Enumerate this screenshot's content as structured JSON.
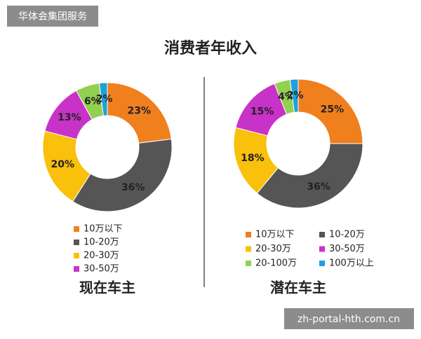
{
  "watermark": "华体会集团服务",
  "title": "消费者年收入",
  "footer": "zh-portal-hth.com.cn",
  "chart_data": [
    {
      "type": "donut",
      "title": "现在车主",
      "categories": [
        "10万以下",
        "10-20万",
        "20-30万",
        "30-50万",
        null,
        null
      ],
      "values": [
        23,
        36,
        20,
        13,
        6,
        2
      ],
      "value_labels": [
        "23%",
        "36%",
        "20%",
        "13%",
        "6%",
        "2%"
      ],
      "colors": [
        "#f07f1e",
        "#555555",
        "#f9c00c",
        "#c832c8",
        "#92d050",
        "#1ea0dc"
      ]
    },
    {
      "type": "donut",
      "title": "潜在车主",
      "categories": [
        "10万以下",
        "10-20万",
        "20-30万",
        "30-50万",
        "20-100万",
        "100万以上"
      ],
      "values": [
        25,
        36,
        18,
        15,
        4,
        2
      ],
      "value_labels": [
        "25%",
        "36%",
        "18%",
        "15%",
        "4%",
        "2%"
      ],
      "colors": [
        "#f07f1e",
        "#555555",
        "#f9c00c",
        "#c832c8",
        "#92d050",
        "#1ea0dc"
      ]
    }
  ]
}
